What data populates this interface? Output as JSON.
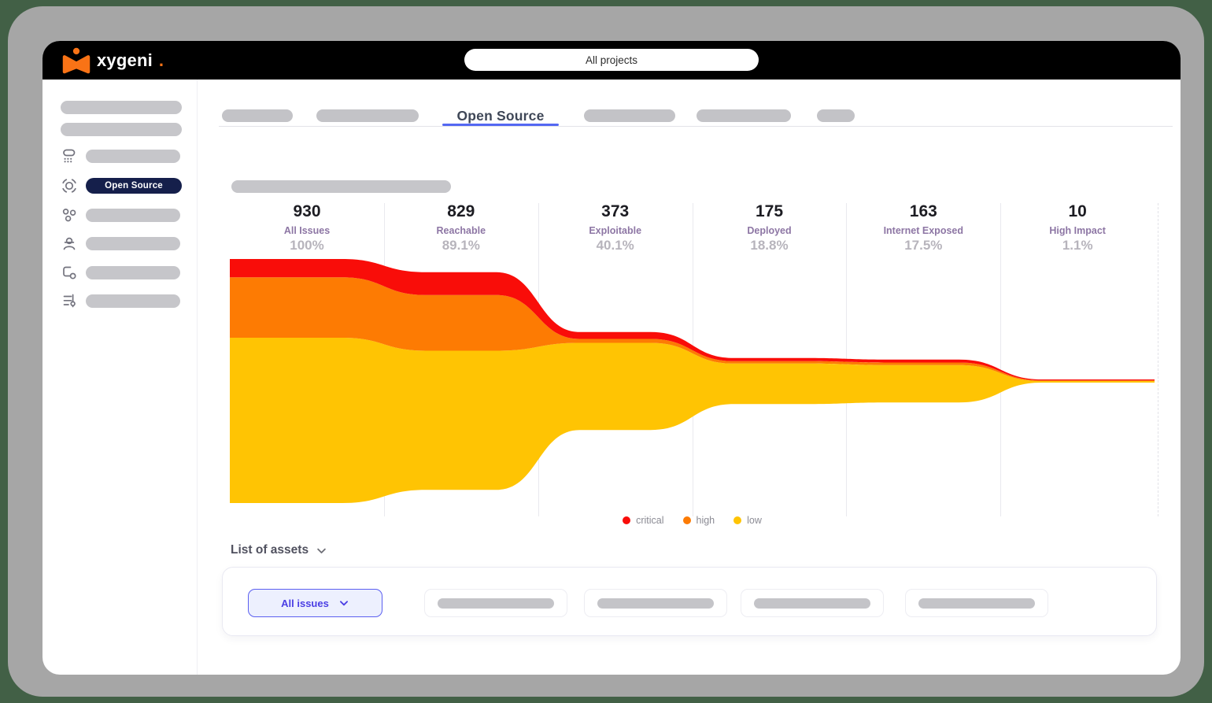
{
  "brand": {
    "name": "xygeni",
    "suffix": ".",
    "color": "#F97316"
  },
  "header": {
    "project_selector_label": "All projects"
  },
  "sidebar": {
    "active_label": "Open Source"
  },
  "tabs": {
    "active_label": "Open Source"
  },
  "assets_section": {
    "heading": "List of assets",
    "filter_button_label": "All issues"
  },
  "chart_data": {
    "type": "area",
    "subtype": "severity-funnel-stream",
    "categories": [
      "All Issues",
      "Reachable",
      "Exploitable",
      "Deployed",
      "Internet Exposed",
      "High Impact"
    ],
    "totals": [
      930,
      829,
      373,
      175,
      163,
      10
    ],
    "percent_labels": [
      "100%",
      "89.1%",
      "40.1%",
      "18.8%",
      "17.5%",
      "1.1%"
    ],
    "series": [
      {
        "name": "critical",
        "color": "#F90D09",
        "values": [
          70,
          87,
          26,
          12,
          11,
          3
        ]
      },
      {
        "name": "high",
        "color": "#FD7B03",
        "values": [
          230,
          212,
          15,
          9,
          10,
          2
        ]
      },
      {
        "name": "low",
        "color": "#FFC403",
        "values": [
          630,
          530,
          332,
          154,
          142,
          5
        ]
      }
    ],
    "legend": [
      "critical",
      "high",
      "low"
    ],
    "legend_position": "bottom",
    "grid": "vertical column dividers",
    "x_axis": "pipeline stage",
    "y_axis": "issue count (band thickness)"
  }
}
